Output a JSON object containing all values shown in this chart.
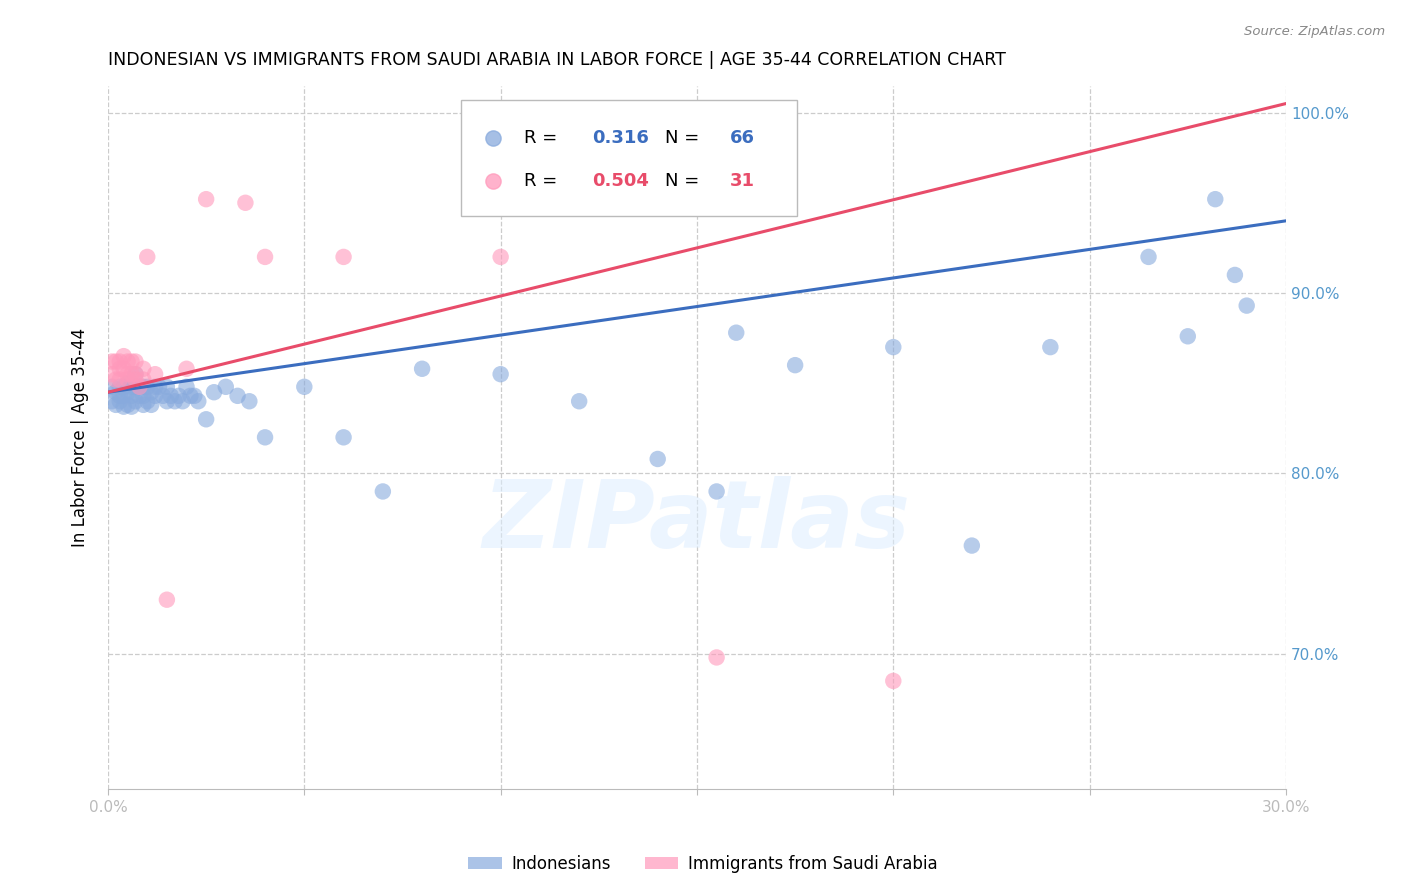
{
  "title": "INDONESIAN VS IMMIGRANTS FROM SAUDI ARABIA IN LABOR FORCE | AGE 35-44 CORRELATION CHART",
  "source": "Source: ZipAtlas.com",
  "ylabel": "In Labor Force | Age 35-44",
  "x_min": 0.0,
  "x_max": 0.3,
  "y_min": 0.625,
  "y_max": 1.015,
  "blue_color": "#88AADD",
  "pink_color": "#FF99BB",
  "blue_line_color": "#3B6DBF",
  "pink_line_color": "#E84C6A",
  "legend_blue_r": "0.316",
  "legend_blue_n": "66",
  "legend_pink_r": "0.504",
  "legend_pink_n": "31",
  "legend_blue_label": "Indonesians",
  "legend_pink_label": "Immigrants from Saudi Arabia",
  "grid_color": "#CCCCCC",
  "watermark": "ZIPatlas",
  "tick_color": "#5599CC",
  "blue_line_x0": 0.0,
  "blue_line_y0": 0.845,
  "blue_line_x1": 0.3,
  "blue_line_y1": 0.94,
  "pink_line_x0": 0.0,
  "pink_line_y0": 0.845,
  "pink_line_x1": 0.3,
  "pink_line_y1": 1.005,
  "blue_x": [
    0.001,
    0.001,
    0.002,
    0.002,
    0.003,
    0.003,
    0.003,
    0.004,
    0.004,
    0.004,
    0.005,
    0.005,
    0.005,
    0.006,
    0.006,
    0.006,
    0.007,
    0.007,
    0.007,
    0.008,
    0.008,
    0.009,
    0.009,
    0.009,
    0.01,
    0.01,
    0.011,
    0.011,
    0.012,
    0.012,
    0.013,
    0.014,
    0.015,
    0.015,
    0.016,
    0.017,
    0.018,
    0.019,
    0.02,
    0.021,
    0.022,
    0.023,
    0.025,
    0.027,
    0.03,
    0.033,
    0.036,
    0.04,
    0.05,
    0.06,
    0.07,
    0.08,
    0.1,
    0.12,
    0.14,
    0.155,
    0.16,
    0.175,
    0.2,
    0.22,
    0.24,
    0.265,
    0.275,
    0.282,
    0.287,
    0.29
  ],
  "blue_y": [
    0.848,
    0.84,
    0.845,
    0.838,
    0.848,
    0.843,
    0.84,
    0.848,
    0.843,
    0.837,
    0.85,
    0.845,
    0.838,
    0.848,
    0.843,
    0.837,
    0.855,
    0.848,
    0.84,
    0.848,
    0.843,
    0.848,
    0.843,
    0.838,
    0.848,
    0.84,
    0.845,
    0.838,
    0.848,
    0.843,
    0.848,
    0.843,
    0.848,
    0.84,
    0.843,
    0.84,
    0.843,
    0.84,
    0.848,
    0.843,
    0.843,
    0.84,
    0.83,
    0.845,
    0.848,
    0.843,
    0.84,
    0.82,
    0.848,
    0.82,
    0.79,
    0.858,
    0.855,
    0.84,
    0.808,
    0.79,
    0.878,
    0.86,
    0.87,
    0.76,
    0.87,
    0.92,
    0.876,
    0.952,
    0.91,
    0.893
  ],
  "pink_x": [
    0.001,
    0.001,
    0.002,
    0.002,
    0.003,
    0.003,
    0.003,
    0.004,
    0.004,
    0.005,
    0.005,
    0.005,
    0.006,
    0.006,
    0.007,
    0.007,
    0.007,
    0.008,
    0.009,
    0.009,
    0.01,
    0.012,
    0.015,
    0.02,
    0.025,
    0.035,
    0.04,
    0.06,
    0.1,
    0.155,
    0.2
  ],
  "pink_y": [
    0.862,
    0.855,
    0.862,
    0.852,
    0.862,
    0.858,
    0.852,
    0.858,
    0.865,
    0.862,
    0.855,
    0.852,
    0.862,
    0.855,
    0.862,
    0.855,
    0.852,
    0.848,
    0.858,
    0.852,
    0.92,
    0.855,
    0.73,
    0.858,
    0.952,
    0.95,
    0.92,
    0.92,
    0.92,
    0.698,
    0.685
  ]
}
